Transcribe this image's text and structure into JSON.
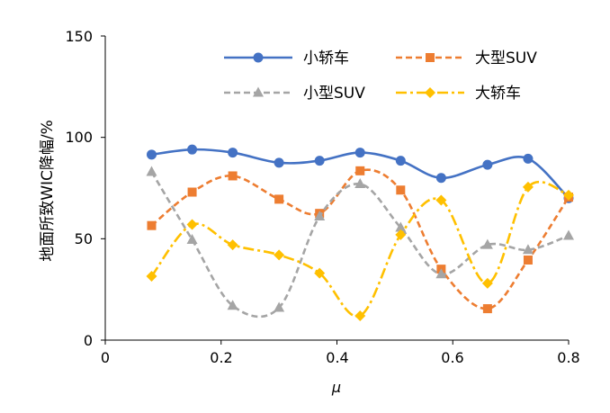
{
  "chart_data": {
    "type": "line",
    "title": "",
    "xlabel": "μ",
    "ylabel": "地面所致WIC降幅/%",
    "xlim": [
      0,
      0.8
    ],
    "ylim": [
      0,
      150
    ],
    "xticks": [
      "0",
      "0.2",
      "0.4",
      "0.6",
      "0.8"
    ],
    "yticks": [
      "0",
      "50",
      "100",
      "150"
    ],
    "grid": false,
    "legend": "top",
    "x": [
      0.08,
      0.15,
      0.22,
      0.3,
      0.37,
      0.44,
      0.51,
      0.58,
      0.66,
      0.73,
      0.8
    ],
    "series": [
      {
        "name": "小轿车",
        "color": "#4472C4",
        "dash": "solid",
        "marker": "circle",
        "values": [
          91.5,
          94,
          92.5,
          87.5,
          88.5,
          92.5,
          88.5,
          80,
          86.5,
          89.5,
          70
        ]
      },
      {
        "name": "大型SUV",
        "color": "#ED7D31",
        "dash": "dash",
        "marker": "square",
        "values": [
          56.5,
          73,
          81,
          69.5,
          62.5,
          83.5,
          74,
          35,
          15.5,
          39.5,
          70.5
        ]
      },
      {
        "name": "小型SUV",
        "color": "#A5A5A5",
        "dash": "dash",
        "marker": "triangle",
        "values": [
          83,
          49.5,
          17,
          16,
          61,
          77,
          55.5,
          32.5,
          47,
          44.5,
          51.5
        ]
      },
      {
        "name": "大轿车",
        "color": "#FFC000",
        "dash": "dashdot",
        "marker": "diamond",
        "values": [
          31.5,
          57,
          47,
          42,
          33,
          12,
          52,
          69,
          28,
          75.5,
          71.5
        ]
      }
    ]
  }
}
